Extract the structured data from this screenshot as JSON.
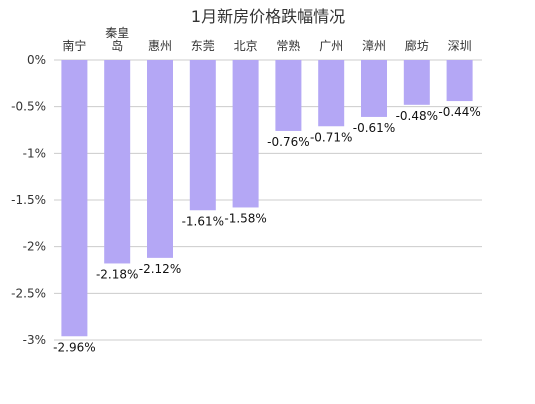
{
  "chart_data": {
    "type": "bar",
    "title": "1月新房价格跌幅情况",
    "xlabel": "",
    "ylabel": "",
    "categories": [
      "南宁",
      "秦皇岛",
      "惠州",
      "东莞",
      "北京",
      "常熟",
      "广州",
      "漳州",
      "廊坊",
      "深圳"
    ],
    "values": [
      -2.96,
      -2.18,
      -2.12,
      -1.61,
      -1.58,
      -0.76,
      -0.71,
      -0.61,
      -0.48,
      -0.44
    ],
    "data_labels": [
      "-2.96%",
      "-2.18%",
      "-2.12%",
      "-1.61%",
      "-1.58%",
      "-0.76%",
      "-0.71%",
      "-0.61%",
      "-0.48%",
      "-0.44%"
    ],
    "yticks": [
      0,
      -0.5,
      -1,
      -1.5,
      -2,
      -2.5,
      -3
    ],
    "ytick_labels": [
      "0%",
      "-0.5%",
      "-1%",
      "-1.5%",
      "-2%",
      "-2.5%",
      "-3%"
    ],
    "ylim": [
      -3,
      0
    ],
    "grid": true,
    "legend": "none",
    "bar_color": "#b4a7f5",
    "grid_color": "#cccccc",
    "category_axis_position": "top"
  }
}
